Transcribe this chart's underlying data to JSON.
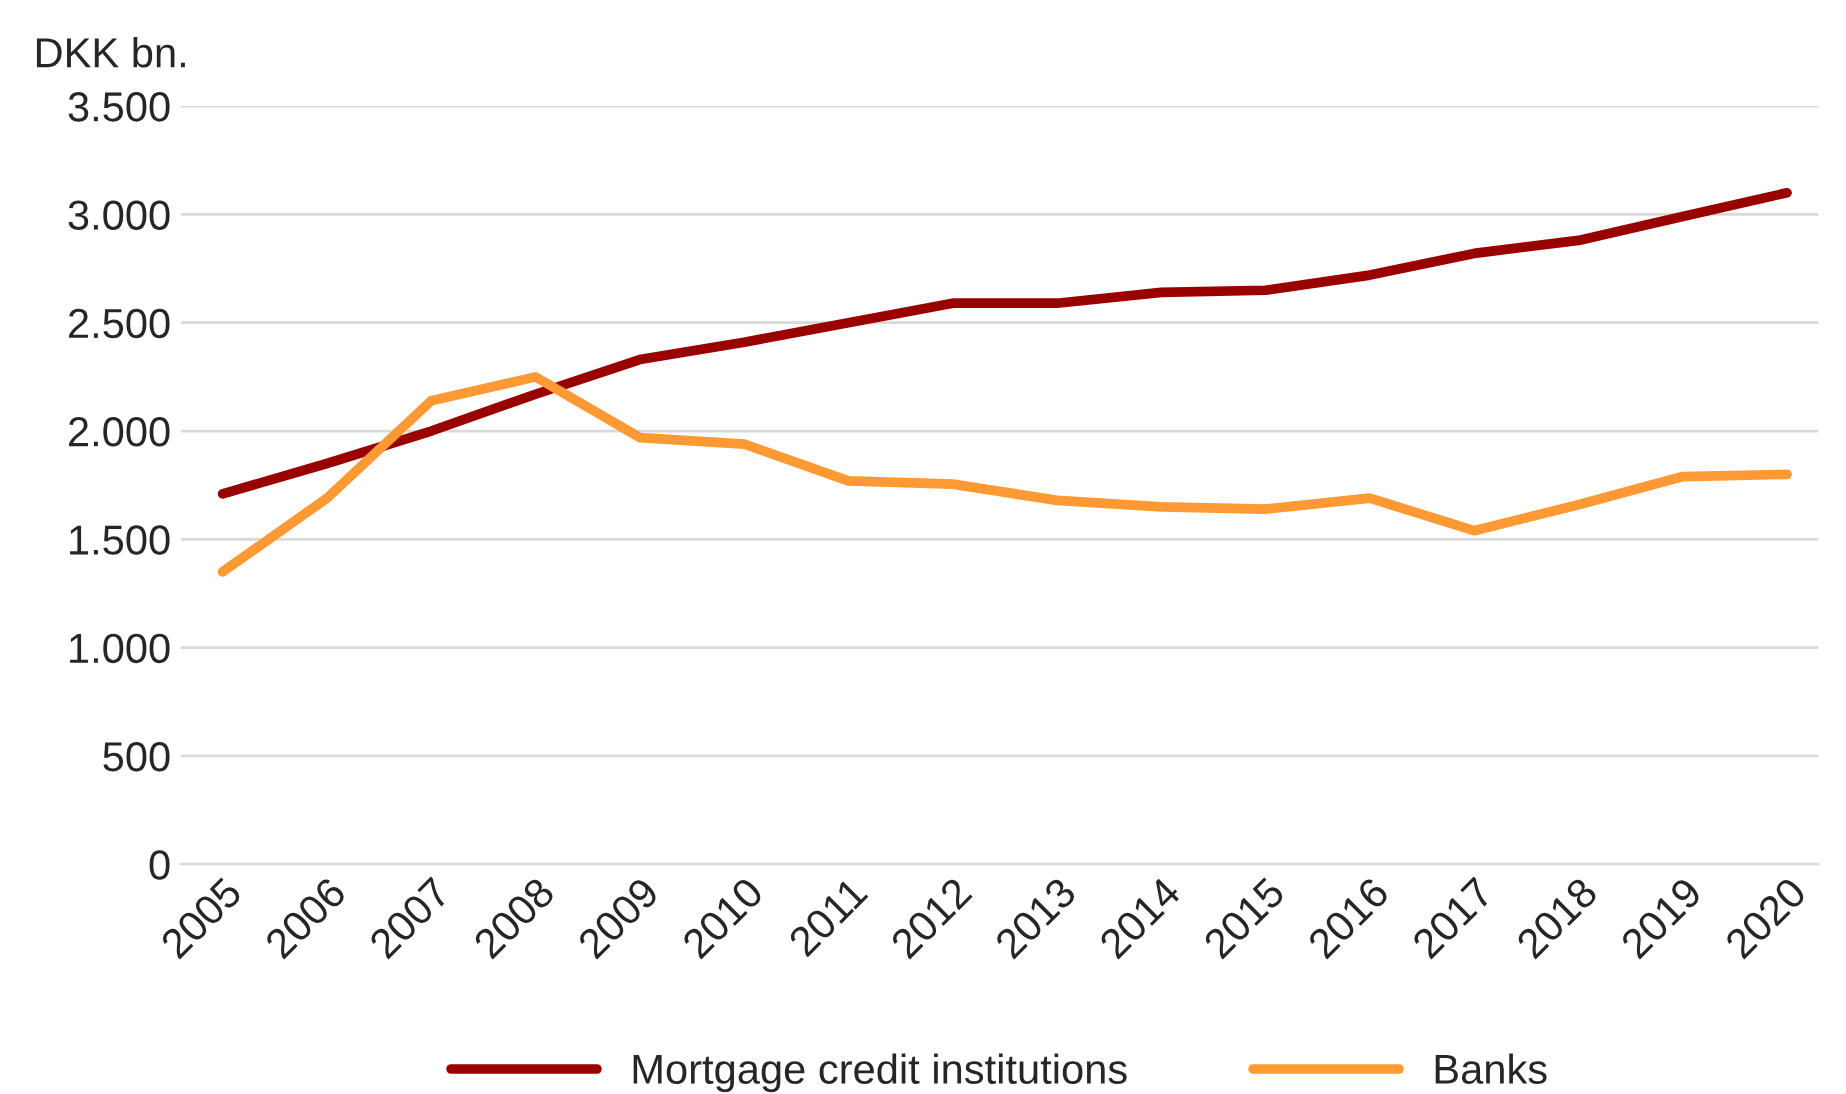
{
  "chart_data": {
    "type": "line",
    "ylabel": "DKK bn.",
    "categories": [
      "2005",
      "2006",
      "2007",
      "2008",
      "2009",
      "2010",
      "2011",
      "2012",
      "2013",
      "2014",
      "2015",
      "2016",
      "2017",
      "2018",
      "2019",
      "2020"
    ],
    "series": [
      {
        "name": "Mortgage credit institutions",
        "color": "#990000",
        "values": [
          1710,
          1850,
          2000,
          2170,
          2330,
          2410,
          2500,
          2590,
          2590,
          2640,
          2650,
          2720,
          2820,
          2880,
          2990,
          3100
        ]
      },
      {
        "name": "Banks",
        "color": "#ff9933",
        "values": [
          1350,
          1690,
          2140,
          2250,
          1970,
          1940,
          1770,
          1755,
          1680,
          1650,
          1640,
          1690,
          1540,
          1660,
          1790,
          1800
        ]
      }
    ],
    "ylim": [
      0,
      3500
    ],
    "yticks": [
      0,
      500,
      {
        "value": 1000,
        "label": "1.000"
      },
      {
        "value": 1500,
        "label": "1.500"
      },
      {
        "value": 2000,
        "label": "2.000"
      },
      {
        "value": 2500,
        "label": "2.500"
      },
      {
        "value": 3000,
        "label": "3.000"
      },
      {
        "value": 3500,
        "label": "3.500"
      }
    ],
    "grid": "y",
    "legend": "bottom",
    "marker": "none",
    "line_style": "solid"
  }
}
